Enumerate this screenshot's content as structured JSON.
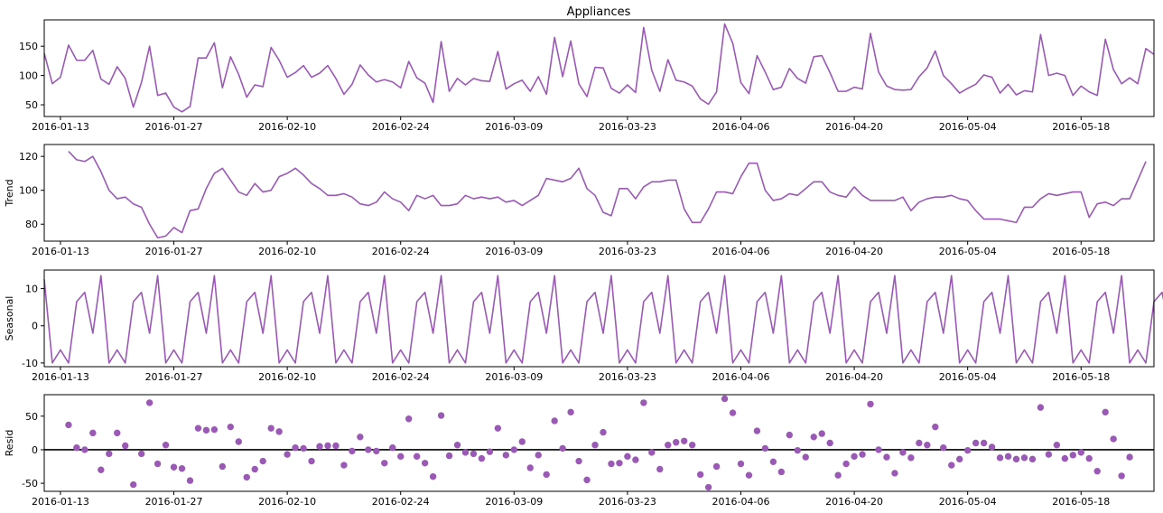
{
  "colors": {
    "series": "#9b59b6",
    "axis": "#000000",
    "zero_line": "#000000"
  },
  "x_ticks": [
    "2016-01-13",
    "2016-01-27",
    "2016-02-10",
    "2016-02-24",
    "2016-03-09",
    "2016-03-23",
    "2016-04-06",
    "2016-04-20",
    "2016-05-04",
    "2016-05-18"
  ],
  "chart_data": [
    {
      "type": "line",
      "title": "Appliances",
      "ylabel": "",
      "x_start": "2016-01-11",
      "x_end": "2016-05-27",
      "ylim": [
        30,
        195
      ],
      "yticks": [
        50,
        100,
        150
      ],
      "series": [
        {
          "values": [
            138,
            86,
            97,
            152,
            126,
            126,
            143,
            94,
            85,
            115,
            95,
            46,
            88,
            150,
            66,
            70,
            46,
            38,
            47,
            130,
            130,
            156,
            79,
            132,
            102,
            63,
            84,
            81,
            148,
            126,
            97,
            105,
            117,
            97,
            104,
            117,
            95,
            68,
            85,
            118,
            101,
            89,
            93,
            89,
            79,
            124,
            96,
            87,
            54,
            158,
            73,
            95,
            84,
            95,
            91,
            90,
            141,
            77,
            86,
            92,
            73,
            98,
            68,
            165,
            98,
            159,
            86,
            64,
            114,
            113,
            78,
            70,
            84,
            71,
            182,
            109,
            73,
            127,
            92,
            89,
            82,
            60,
            51,
            72,
            188,
            155,
            88,
            69,
            134,
            106,
            76,
            80,
            112,
            95,
            87,
            132,
            134,
            105,
            73,
            73,
            80,
            77,
            172,
            106,
            82,
            76,
            75,
            76,
            98,
            113,
            142,
            100,
            86,
            70,
            78,
            85,
            101,
            97,
            70,
            85,
            67,
            74,
            72,
            170,
            100,
            104,
            100,
            66,
            82,
            72,
            66,
            162,
            110,
            86,
            96,
            86,
            146,
            136
          ]
        }
      ]
    },
    {
      "type": "line",
      "title": "",
      "ylabel": "Trend",
      "x_start": "2016-01-11",
      "x_end": "2016-05-27",
      "x_offset": 3,
      "ylim": [
        70,
        127
      ],
      "yticks": [
        80,
        100,
        120
      ],
      "series": [
        {
          "values": [
            123,
            118,
            117,
            120,
            111,
            100,
            95,
            96,
            92,
            90,
            80,
            72,
            73,
            78,
            75,
            88,
            89,
            101,
            110,
            113,
            106,
            99,
            97,
            104,
            99,
            100,
            108,
            110,
            113,
            109,
            104,
            101,
            97,
            97,
            98,
            96,
            92,
            91,
            93,
            99,
            95,
            93,
            88,
            97,
            95,
            97,
            91,
            91,
            92,
            97,
            95,
            96,
            95,
            96,
            93,
            94,
            91,
            94,
            97,
            107,
            106,
            105,
            107,
            113,
            101,
            97,
            87,
            85,
            101,
            101,
            95,
            102,
            105,
            105,
            106,
            106,
            89,
            81,
            81,
            89,
            99,
            99,
            98,
            108,
            116,
            116,
            100,
            94,
            95,
            98,
            97,
            101,
            105,
            105,
            99,
            97,
            96,
            102,
            97,
            94,
            94,
            94,
            94,
            96,
            88,
            93,
            95,
            96,
            96,
            97,
            95,
            94,
            88,
            83,
            83,
            83,
            82,
            81,
            90,
            90,
            95,
            98,
            97,
            98,
            99,
            99,
            84,
            92,
            93,
            91,
            95,
            95,
            106,
            117
          ]
        }
      ]
    },
    {
      "type": "line",
      "title": "",
      "ylabel": "Seasonal",
      "x_start": "2016-01-11",
      "x_end": "2016-05-27",
      "ylim": [
        -11,
        15
      ],
      "yticks": [
        -10,
        0,
        10
      ],
      "pattern": [
        12.5,
        -10,
        -6.5,
        -10,
        6.5,
        9,
        -2,
        13.5,
        -10,
        -6.5,
        -10,
        6.5,
        9,
        -2,
        13.5
      ],
      "series": [
        {
          "values": [
            12.5,
            -10,
            -6.5,
            -10,
            6.5,
            9,
            -2,
            13.5,
            -10,
            -6.5,
            -10,
            6.5,
            9,
            -2,
            13.5,
            -10,
            -6.5,
            -10,
            6.5,
            9,
            -2,
            13.5,
            -10,
            -6.5,
            -10,
            6.5,
            9,
            -2,
            13.5,
            -10,
            -6.5,
            -10,
            6.5,
            9,
            -2,
            13.5,
            -10,
            -6.5,
            -10,
            6.5,
            9,
            -2,
            13.5,
            -10,
            -6.5,
            -10,
            6.5,
            9,
            -2,
            13.5,
            -10,
            -6.5,
            -10,
            6.5,
            9,
            -2,
            13.5,
            -10,
            -6.5,
            -10,
            6.5,
            9,
            -2,
            13.5,
            -10,
            -6.5,
            -10,
            6.5,
            9,
            -2,
            13.5,
            -10,
            -6.5,
            -10,
            6.5,
            9,
            -2,
            13.5,
            -10,
            -6.5,
            -10,
            6.5,
            9,
            -2,
            13.5,
            -10,
            -6.5,
            -10,
            6.5,
            9,
            -2,
            13.5,
            -10,
            -6.5,
            -10,
            6.5,
            9,
            -2,
            13.5,
            -10,
            -6.5,
            -10,
            6.5,
            9,
            -2,
            13.5,
            -10,
            -6.5,
            -10,
            6.5,
            9,
            -2,
            13.5,
            -10,
            -6.5,
            -10,
            6.5,
            9,
            -2,
            13.5,
            -10,
            -6.5,
            -10,
            6.5,
            9,
            -2,
            13.5,
            -10,
            -6.5,
            -10,
            6.5,
            9,
            -2,
            13.5,
            -10,
            -6.5,
            -10,
            6.5,
            9,
            -2,
            13.5
          ]
        }
      ]
    },
    {
      "type": "scatter",
      "title": "",
      "ylabel": "Resid",
      "x_start": "2016-01-11",
      "x_end": "2016-05-27",
      "x_offset": 3,
      "ylim": [
        -62,
        82
      ],
      "yticks": [
        -50,
        0,
        50
      ],
      "zero_line": true,
      "series": [
        {
          "values": [
            37,
            3,
            0,
            25,
            -30,
            -6,
            25,
            6,
            -52,
            -6,
            70,
            -21,
            7,
            -26,
            -28,
            -46,
            32,
            29,
            30,
            -25,
            34,
            12,
            -41,
            -29,
            -17,
            32,
            27,
            -7,
            3,
            2,
            -17,
            5,
            6,
            6,
            -23,
            -2,
            19,
            0,
            -2,
            -20,
            3,
            -10,
            46,
            -10,
            -20,
            -40,
            51,
            -9,
            7,
            -4,
            -6,
            -13,
            -3,
            32,
            -8,
            0,
            12,
            -27,
            -8,
            -37,
            43,
            2,
            56,
            -17,
            -45,
            7,
            26,
            -21,
            -20,
            -10,
            -15,
            70,
            -4,
            -29,
            7,
            11,
            13,
            7,
            -37,
            -56,
            -25,
            76,
            55,
            -21,
            -38,
            28,
            2,
            -18,
            -33,
            22,
            -1,
            -11,
            19,
            24,
            10,
            -38,
            -21,
            -10,
            -7,
            68,
            0,
            -11,
            -35,
            -4,
            -12,
            10,
            7,
            34,
            3,
            -23,
            -14,
            -1,
            10,
            10,
            4,
            -12,
            -10,
            -14,
            -12,
            -14,
            63,
            -7,
            7,
            -13,
            -8,
            -4,
            -13,
            -32,
            56,
            16,
            -39,
            -11
          ]
        }
      ]
    }
  ]
}
